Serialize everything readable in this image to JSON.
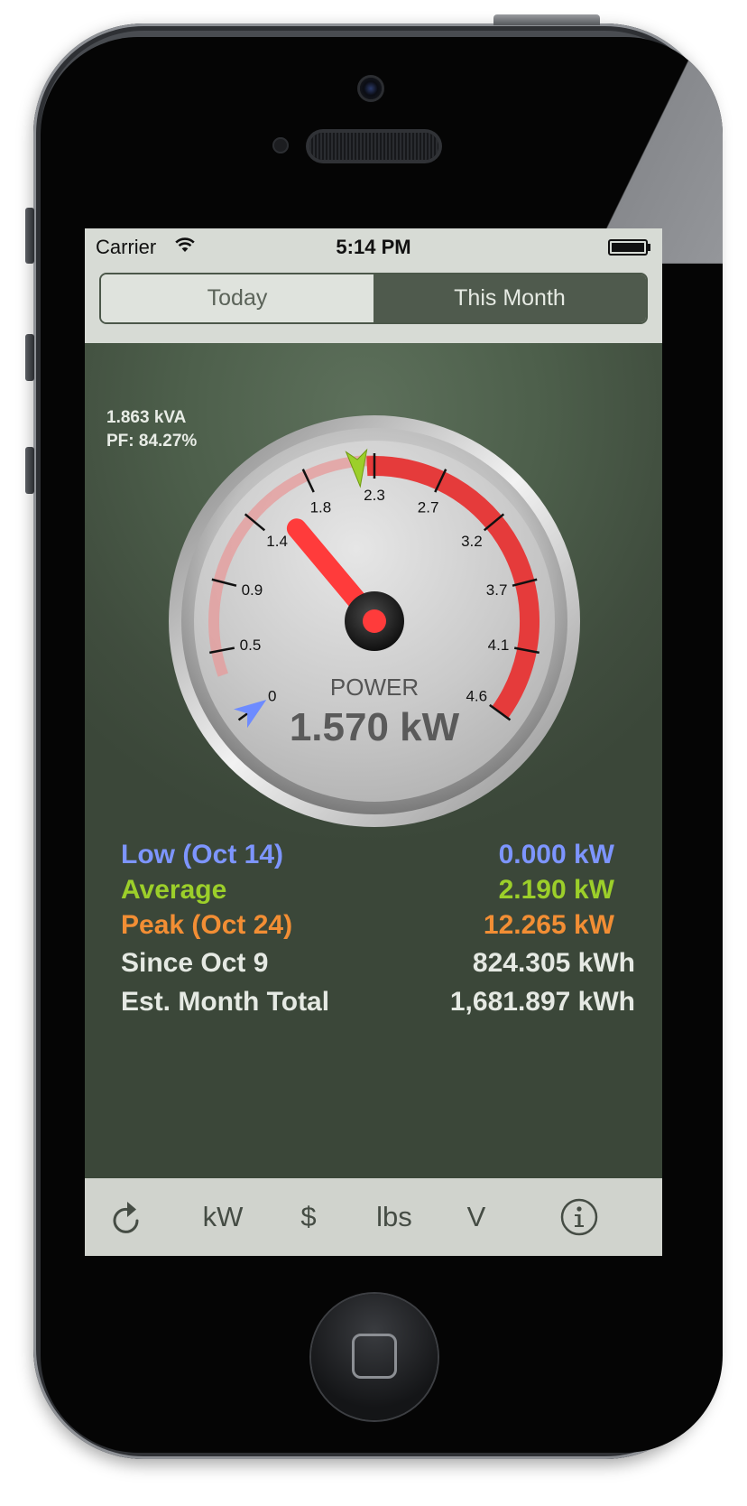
{
  "status_bar": {
    "carrier": "Carrier",
    "time": "5:14 PM"
  },
  "segments": [
    {
      "label": "Today",
      "selected": false
    },
    {
      "label": "This Month",
      "selected": true
    }
  ],
  "apparent_power": "1.863 kVA",
  "power_factor": "PF: 84.27%",
  "gauge": {
    "title": "POWER",
    "value_label": "1.570 kW",
    "value": 1.57,
    "average_marker": 2.19,
    "low_marker": 0,
    "max": 4.6,
    "tick_labels": [
      "0",
      "0.5",
      "0.9",
      "1.4",
      "1.8",
      "2.3",
      "2.7",
      "3.2",
      "3.7",
      "4.1",
      "4.6"
    ],
    "needle_color": "#ff3b3b",
    "danger_color": "#e53b3b"
  },
  "stats": {
    "low_label": "Low (Oct 14)",
    "low_value": "0.000 kW",
    "average_label": "Average",
    "average_value": "2.190 kW",
    "peak_label": "Peak (Oct 24)",
    "peak_value": "12.265 kW",
    "since_label": "Since Oct 9",
    "since_value": "824.305 kWh",
    "est_label": "Est. Month Total",
    "est_value": "1,681.897 kWh"
  },
  "toolbar": {
    "refresh_icon": "refresh-icon",
    "kw": "kW",
    "cost": "$",
    "lbs": "lbs",
    "volts": "V",
    "info_icon": "info-icon"
  },
  "colors": {
    "low": "#7d95ff",
    "average": "#9ccf2a",
    "peak": "#f28e34",
    "background": "#4d5f4b"
  }
}
